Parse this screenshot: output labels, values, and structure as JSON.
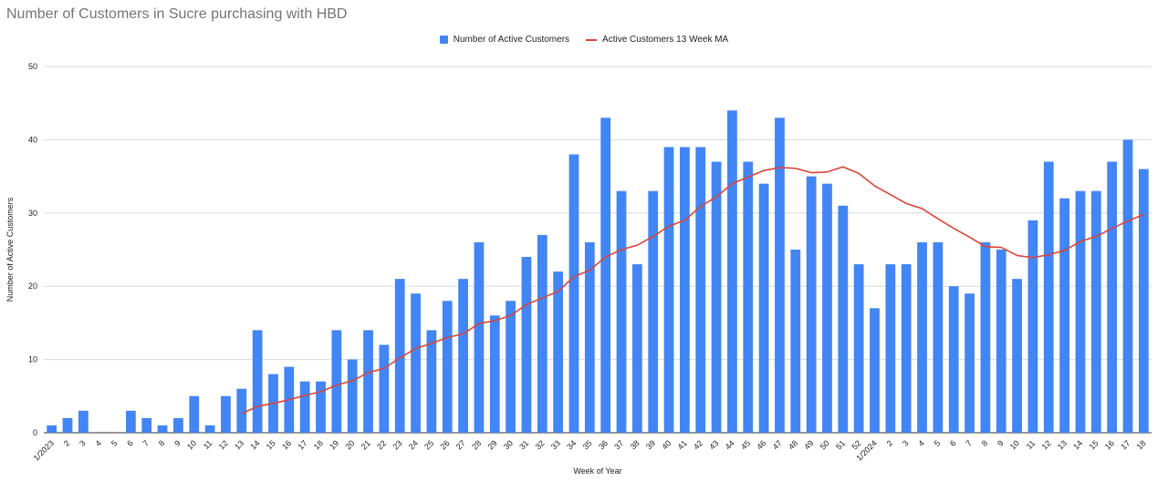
{
  "chart_data": {
    "type": "bar",
    "title": "Number of Customers in Sucre purchasing with HBD",
    "xlabel": "Week of Year",
    "ylabel": "Number of Active Customers",
    "ylim": [
      0,
      50
    ],
    "yticks": [
      0,
      10,
      20,
      30,
      40,
      50
    ],
    "grid": true,
    "legend_position": "top",
    "colors": {
      "bars": "#4285f4",
      "line": "#db4437",
      "grid": "#d9d9d9"
    },
    "categories": [
      "1/2023",
      "2",
      "3",
      "4",
      "5",
      "6",
      "7",
      "8",
      "9",
      "10",
      "11",
      "12",
      "13",
      "14",
      "15",
      "16",
      "17",
      "18",
      "19",
      "20",
      "21",
      "22",
      "23",
      "24",
      "25",
      "26",
      "27",
      "28",
      "29",
      "30",
      "31",
      "32",
      "33",
      "34",
      "35",
      "36",
      "37",
      "38",
      "39",
      "40",
      "41",
      "42",
      "43",
      "44",
      "45",
      "46",
      "47",
      "48",
      "49",
      "50",
      "51",
      "52",
      "1/2024",
      "2",
      "3",
      "4",
      "5",
      "6",
      "7",
      "8",
      "9",
      "10",
      "11",
      "12",
      "13",
      "14",
      "15",
      "16",
      "17",
      "18"
    ],
    "series": [
      {
        "name": "Number of Active Customers",
        "type": "bar",
        "values": [
          1,
          2,
          3,
          0,
          0,
          3,
          2,
          1,
          2,
          5,
          1,
          5,
          6,
          14,
          8,
          9,
          7,
          7,
          14,
          10,
          14,
          12,
          21,
          19,
          14,
          18,
          21,
          26,
          16,
          18,
          24,
          27,
          22,
          38,
          26,
          43,
          33,
          23,
          33,
          39,
          39,
          39,
          37,
          44,
          37,
          34,
          43,
          25,
          35,
          34,
          31,
          23,
          17,
          23,
          23,
          26,
          26,
          20,
          19,
          26,
          25,
          21,
          29,
          37,
          32,
          33,
          33,
          37,
          40,
          36
        ]
      },
      {
        "name": "Active Customers 13 Week MA",
        "type": "line",
        "values": [
          null,
          null,
          null,
          null,
          null,
          null,
          null,
          null,
          null,
          null,
          null,
          null,
          2.6,
          3.6,
          4.0,
          4.5,
          5.1,
          5.6,
          6.5,
          7.1,
          8.2,
          8.8,
          10.2,
          11.5,
          12.2,
          13.0,
          13.5,
          14.9,
          15.3,
          16.0,
          17.5,
          18.4,
          19.3,
          21.3,
          22.2,
          24.0,
          25.0,
          25.6,
          26.8,
          28.2,
          29.0,
          30.9,
          32.2,
          34.0,
          34.9,
          35.8,
          36.2,
          36.1,
          35.5,
          35.6,
          36.3,
          35.4,
          33.7,
          32.5,
          31.3,
          30.6,
          29.2,
          27.9,
          26.7,
          25.4,
          25.3,
          24.2,
          23.9,
          24.3,
          24.9,
          26.1,
          26.8,
          27.9,
          28.9,
          29.8
        ]
      }
    ]
  }
}
